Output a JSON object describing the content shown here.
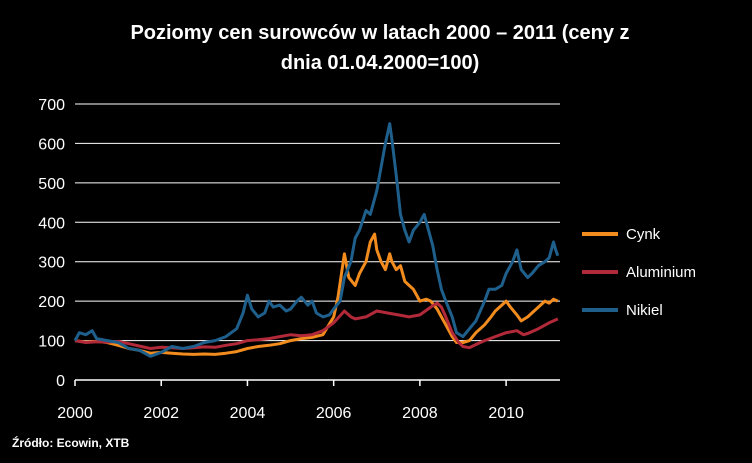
{
  "chart_data": {
    "type": "line",
    "title": "Poziomy cen surowców w latach 2000 – 2011 (ceny z dnia 01.04.2000=100)",
    "title_lines": [
      "Poziomy cen surowców w latach 2000 – 2011 (ceny z",
      "dnia 01.04.2000=100)"
    ],
    "xlabel": "",
    "ylabel": "",
    "xlim": [
      2000,
      2011.25
    ],
    "ylim": [
      0,
      700
    ],
    "x_ticks": [
      "2000",
      "2002",
      "2004",
      "2006",
      "2008",
      "2010"
    ],
    "x_tick_values": [
      2000,
      2002,
      2004,
      2006,
      2008,
      2010
    ],
    "y_ticks": [
      "0",
      "100",
      "200",
      "300",
      "400",
      "500",
      "600",
      "700"
    ],
    "y_tick_values": [
      0,
      100,
      200,
      300,
      400,
      500,
      600,
      700
    ],
    "grid": "horizontal",
    "legend_position": "right",
    "source": "Źródło: Ecowin, XTB",
    "series": [
      {
        "name": "Cynk",
        "color": "#F28C1E",
        "points": [
          [
            2000.0,
            100
          ],
          [
            2000.25,
            96
          ],
          [
            2000.5,
            98
          ],
          [
            2000.75,
            95
          ],
          [
            2001.0,
            88
          ],
          [
            2001.25,
            80
          ],
          [
            2001.5,
            75
          ],
          [
            2001.75,
            68
          ],
          [
            2002.0,
            70
          ],
          [
            2002.25,
            68
          ],
          [
            2002.5,
            66
          ],
          [
            2002.75,
            65
          ],
          [
            2003.0,
            66
          ],
          [
            2003.25,
            65
          ],
          [
            2003.5,
            68
          ],
          [
            2003.75,
            72
          ],
          [
            2004.0,
            80
          ],
          [
            2004.25,
            85
          ],
          [
            2004.5,
            88
          ],
          [
            2004.75,
            92
          ],
          [
            2005.0,
            100
          ],
          [
            2005.25,
            105
          ],
          [
            2005.5,
            108
          ],
          [
            2005.75,
            115
          ],
          [
            2006.0,
            160
          ],
          [
            2006.1,
            210
          ],
          [
            2006.25,
            320
          ],
          [
            2006.35,
            260
          ],
          [
            2006.5,
            240
          ],
          [
            2006.6,
            270
          ],
          [
            2006.75,
            300
          ],
          [
            2006.85,
            350
          ],
          [
            2006.95,
            370
          ],
          [
            2007.0,
            330
          ],
          [
            2007.1,
            300
          ],
          [
            2007.2,
            280
          ],
          [
            2007.3,
            320
          ],
          [
            2007.35,
            300
          ],
          [
            2007.45,
            280
          ],
          [
            2007.55,
            290
          ],
          [
            2007.65,
            250
          ],
          [
            2007.75,
            240
          ],
          [
            2007.85,
            230
          ],
          [
            2008.0,
            200
          ],
          [
            2008.15,
            205
          ],
          [
            2008.25,
            200
          ],
          [
            2008.4,
            180
          ],
          [
            2008.5,
            160
          ],
          [
            2008.6,
            140
          ],
          [
            2008.75,
            110
          ],
          [
            2008.85,
            95
          ],
          [
            2009.0,
            95
          ],
          [
            2009.15,
            100
          ],
          [
            2009.3,
            120
          ],
          [
            2009.5,
            140
          ],
          [
            2009.65,
            160
          ],
          [
            2009.75,
            175
          ],
          [
            2009.9,
            190
          ],
          [
            2010.0,
            200
          ],
          [
            2010.1,
            185
          ],
          [
            2010.25,
            165
          ],
          [
            2010.35,
            150
          ],
          [
            2010.5,
            160
          ],
          [
            2010.65,
            175
          ],
          [
            2010.75,
            185
          ],
          [
            2010.9,
            200
          ],
          [
            2011.0,
            195
          ],
          [
            2011.1,
            205
          ],
          [
            2011.2,
            200
          ]
        ]
      },
      {
        "name": "Aluminium",
        "color": "#B22A3A",
        "points": [
          [
            2000.0,
            100
          ],
          [
            2000.25,
            95
          ],
          [
            2000.5,
            97
          ],
          [
            2000.75,
            96
          ],
          [
            2001.0,
            98
          ],
          [
            2001.25,
            92
          ],
          [
            2001.5,
            86
          ],
          [
            2001.75,
            80
          ],
          [
            2002.0,
            83
          ],
          [
            2002.25,
            82
          ],
          [
            2002.5,
            80
          ],
          [
            2002.75,
            82
          ],
          [
            2003.0,
            84
          ],
          [
            2003.25,
            83
          ],
          [
            2003.5,
            88
          ],
          [
            2003.75,
            92
          ],
          [
            2004.0,
            100
          ],
          [
            2004.25,
            102
          ],
          [
            2004.5,
            105
          ],
          [
            2004.75,
            110
          ],
          [
            2005.0,
            115
          ],
          [
            2005.25,
            112
          ],
          [
            2005.5,
            115
          ],
          [
            2005.75,
            125
          ],
          [
            2006.0,
            145
          ],
          [
            2006.25,
            175
          ],
          [
            2006.4,
            160
          ],
          [
            2006.5,
            155
          ],
          [
            2006.75,
            160
          ],
          [
            2007.0,
            175
          ],
          [
            2007.25,
            170
          ],
          [
            2007.5,
            165
          ],
          [
            2007.75,
            160
          ],
          [
            2008.0,
            165
          ],
          [
            2008.25,
            185
          ],
          [
            2008.4,
            195
          ],
          [
            2008.5,
            185
          ],
          [
            2008.6,
            160
          ],
          [
            2008.75,
            120
          ],
          [
            2008.9,
            95
          ],
          [
            2009.0,
            85
          ],
          [
            2009.15,
            82
          ],
          [
            2009.3,
            90
          ],
          [
            2009.5,
            100
          ],
          [
            2009.75,
            110
          ],
          [
            2010.0,
            120
          ],
          [
            2010.25,
            125
          ],
          [
            2010.4,
            115
          ],
          [
            2010.5,
            118
          ],
          [
            2010.75,
            130
          ],
          [
            2011.0,
            145
          ],
          [
            2011.1,
            150
          ],
          [
            2011.2,
            155
          ]
        ]
      },
      {
        "name": "Nikiel",
        "color": "#1E5F8C",
        "points": [
          [
            2000.0,
            100
          ],
          [
            2000.1,
            120
          ],
          [
            2000.25,
            115
          ],
          [
            2000.4,
            125
          ],
          [
            2000.5,
            105
          ],
          [
            2000.75,
            100
          ],
          [
            2001.0,
            95
          ],
          [
            2001.25,
            80
          ],
          [
            2001.5,
            75
          ],
          [
            2001.75,
            60
          ],
          [
            2002.0,
            70
          ],
          [
            2002.25,
            85
          ],
          [
            2002.5,
            80
          ],
          [
            2002.75,
            85
          ],
          [
            2003.0,
            95
          ],
          [
            2003.25,
            100
          ],
          [
            2003.5,
            110
          ],
          [
            2003.75,
            130
          ],
          [
            2003.9,
            170
          ],
          [
            2004.0,
            215
          ],
          [
            2004.1,
            180
          ],
          [
            2004.25,
            160
          ],
          [
            2004.4,
            170
          ],
          [
            2004.5,
            200
          ],
          [
            2004.6,
            185
          ],
          [
            2004.75,
            190
          ],
          [
            2004.9,
            175
          ],
          [
            2005.0,
            180
          ],
          [
            2005.15,
            200
          ],
          [
            2005.25,
            210
          ],
          [
            2005.4,
            190
          ],
          [
            2005.5,
            200
          ],
          [
            2005.6,
            170
          ],
          [
            2005.75,
            160
          ],
          [
            2005.9,
            165
          ],
          [
            2006.0,
            180
          ],
          [
            2006.15,
            200
          ],
          [
            2006.25,
            260
          ],
          [
            2006.4,
            300
          ],
          [
            2006.5,
            360
          ],
          [
            2006.6,
            380
          ],
          [
            2006.75,
            430
          ],
          [
            2006.85,
            420
          ],
          [
            2007.0,
            480
          ],
          [
            2007.1,
            540
          ],
          [
            2007.2,
            600
          ],
          [
            2007.3,
            650
          ],
          [
            2007.35,
            610
          ],
          [
            2007.45,
            520
          ],
          [
            2007.55,
            420
          ],
          [
            2007.65,
            380
          ],
          [
            2007.75,
            350
          ],
          [
            2007.85,
            380
          ],
          [
            2008.0,
            400
          ],
          [
            2008.1,
            420
          ],
          [
            2008.2,
            380
          ],
          [
            2008.3,
            340
          ],
          [
            2008.4,
            280
          ],
          [
            2008.5,
            230
          ],
          [
            2008.6,
            200
          ],
          [
            2008.75,
            160
          ],
          [
            2008.85,
            120
          ],
          [
            2009.0,
            110
          ],
          [
            2009.15,
            130
          ],
          [
            2009.3,
            150
          ],
          [
            2009.5,
            200
          ],
          [
            2009.6,
            230
          ],
          [
            2009.75,
            230
          ],
          [
            2009.9,
            240
          ],
          [
            2010.0,
            270
          ],
          [
            2010.15,
            300
          ],
          [
            2010.25,
            330
          ],
          [
            2010.35,
            280
          ],
          [
            2010.5,
            260
          ],
          [
            2010.6,
            270
          ],
          [
            2010.75,
            290
          ],
          [
            2010.9,
            300
          ],
          [
            2011.0,
            310
          ],
          [
            2011.1,
            350
          ],
          [
            2011.15,
            330
          ],
          [
            2011.2,
            315
          ]
        ]
      }
    ]
  }
}
